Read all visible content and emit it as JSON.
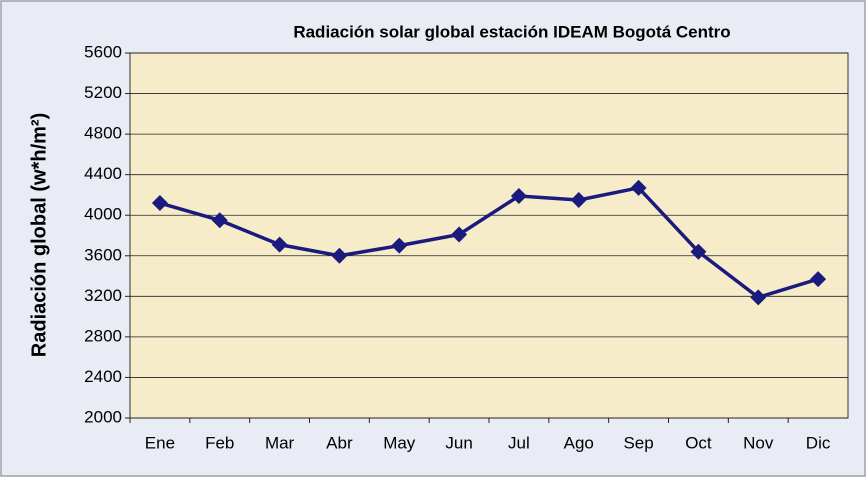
{
  "chart_data": {
    "type": "line",
    "title": "Radiación solar global estación IDEAM Bogotá Centro",
    "y_label": "Radiación global (w*h/m²)",
    "categories": [
      "Ene",
      "Feb",
      "Mar",
      "Abr",
      "May",
      "Jun",
      "Jul",
      "Ago",
      "Sep",
      "Oct",
      "Nov",
      "Dic"
    ],
    "series": [
      {
        "color": "#1b1b7e",
        "values": [
          4120,
          3950,
          3710,
          3600,
          3700,
          3810,
          4190,
          4150,
          4270,
          3640,
          3190,
          3370
        ]
      }
    ],
    "ylim": [
      2000,
      5600
    ],
    "yticks": [
      2000,
      2400,
      2800,
      3200,
      3600,
      4000,
      4400,
      4800,
      5200,
      5600
    ],
    "grid": true
  }
}
